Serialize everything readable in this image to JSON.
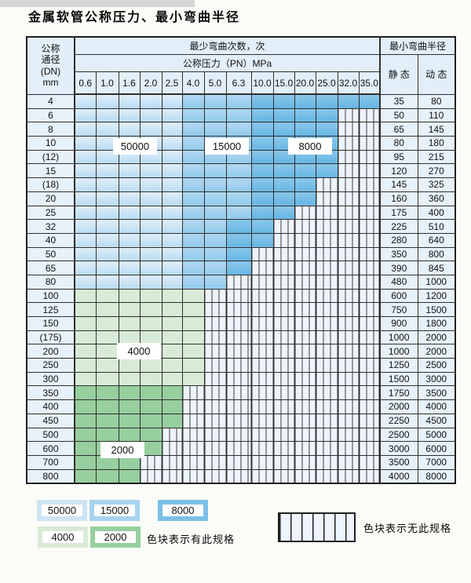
{
  "title": "金属软管公称压力、最小弯曲半径",
  "header": {
    "dn_lines": [
      "公称",
      "通径",
      "(DN)",
      "mm"
    ],
    "bend_cycles": "最少弯曲次数，次",
    "pressure_title": "公称压力（PN）MPa",
    "pressures": [
      "0.6",
      "1.0",
      "1.6",
      "2.0",
      "2.5",
      "4.0",
      "5.0",
      "6.3",
      "10.0",
      "15.0",
      "20.0",
      "25.0",
      "32.0",
      "35.0"
    ],
    "min_radius": "最小弯曲半径",
    "static_label": "静 态",
    "dynamic_label": "动 态"
  },
  "colors": {
    "b1": "#cde4f5",
    "b2": "#a6d3ef",
    "b3": "#7cc0e7",
    "g1": "#d8ebd6",
    "g2": "#97cf9e",
    "hatch_bg": "#edf4fb",
    "hatch_line": "#3c3c3c"
  },
  "rows": [
    {
      "dn": "4",
      "static": "35",
      "dynamic": "80",
      "spans": [
        [
          "b1",
          5
        ],
        [
          "b2",
          3
        ],
        [
          "b3",
          6
        ]
      ]
    },
    {
      "dn": "6",
      "static": "50",
      "dynamic": "110",
      "spans": [
        [
          "b1",
          5
        ],
        [
          "b2",
          3
        ],
        [
          "b3",
          4
        ]
      ]
    },
    {
      "dn": "8",
      "static": "65",
      "dynamic": "145",
      "spans": [
        [
          "b1",
          5
        ],
        [
          "b2",
          3
        ],
        [
          "b3",
          4
        ]
      ]
    },
    {
      "dn": "10",
      "static": "80",
      "dynamic": "180",
      "spans": [
        [
          "b1",
          5
        ],
        [
          "b2",
          3
        ],
        [
          "b3",
          4
        ]
      ]
    },
    {
      "dn": "(12)",
      "static": "95",
      "dynamic": "215",
      "spans": [
        [
          "b1",
          5
        ],
        [
          "b2",
          3
        ],
        [
          "b3",
          4
        ]
      ]
    },
    {
      "dn": "15",
      "static": "120",
      "dynamic": "270",
      "spans": [
        [
          "b1",
          5
        ],
        [
          "b2",
          3
        ],
        [
          "b3",
          4
        ]
      ]
    },
    {
      "dn": "(18)",
      "static": "145",
      "dynamic": "325",
      "spans": [
        [
          "b1",
          5
        ],
        [
          "b2",
          3
        ],
        [
          "b3",
          3
        ]
      ]
    },
    {
      "dn": "20",
      "static": "160",
      "dynamic": "360",
      "spans": [
        [
          "b1",
          5
        ],
        [
          "b2",
          3
        ],
        [
          "b3",
          3
        ]
      ]
    },
    {
      "dn": "25",
      "static": "175",
      "dynamic": "400",
      "spans": [
        [
          "b1",
          5
        ],
        [
          "b2",
          3
        ],
        [
          "b3",
          2
        ]
      ]
    },
    {
      "dn": "32",
      "static": "225",
      "dynamic": "510",
      "spans": [
        [
          "b1",
          5
        ],
        [
          "b2",
          2
        ],
        [
          "b3",
          2
        ]
      ]
    },
    {
      "dn": "40",
      "static": "280",
      "dynamic": "640",
      "spans": [
        [
          "b1",
          5
        ],
        [
          "b2",
          2
        ],
        [
          "b3",
          2
        ]
      ]
    },
    {
      "dn": "50",
      "static": "350",
      "dynamic": "800",
      "spans": [
        [
          "b1",
          5
        ],
        [
          "b2",
          2
        ],
        [
          "b3",
          1
        ]
      ]
    },
    {
      "dn": "65",
      "static": "390",
      "dynamic": "845",
      "spans": [
        [
          "b1",
          5
        ],
        [
          "b2",
          2
        ],
        [
          "b3",
          1
        ]
      ]
    },
    {
      "dn": "80",
      "static": "480",
      "dynamic": "1000",
      "spans": [
        [
          "b1",
          5
        ],
        [
          "b2",
          2
        ]
      ]
    },
    {
      "dn": "100",
      "static": "600",
      "dynamic": "1200",
      "spans": [
        [
          "g1",
          6
        ]
      ]
    },
    {
      "dn": "125",
      "static": "750",
      "dynamic": "1500",
      "spans": [
        [
          "g1",
          6
        ]
      ]
    },
    {
      "dn": "150",
      "static": "900",
      "dynamic": "1800",
      "spans": [
        [
          "g1",
          6
        ]
      ]
    },
    {
      "dn": "(175)",
      "static": "1000",
      "dynamic": "2000",
      "spans": [
        [
          "g1",
          6
        ]
      ]
    },
    {
      "dn": "200",
      "static": "1000",
      "dynamic": "2000",
      "spans": [
        [
          "g1",
          6
        ]
      ]
    },
    {
      "dn": "250",
      "static": "1250",
      "dynamic": "2500",
      "spans": [
        [
          "g1",
          6
        ]
      ]
    },
    {
      "dn": "300",
      "static": "1500",
      "dynamic": "3000",
      "spans": [
        [
          "g1",
          6
        ]
      ]
    },
    {
      "dn": "350",
      "static": "1750",
      "dynamic": "3500",
      "spans": [
        [
          "g2",
          5
        ]
      ]
    },
    {
      "dn": "400",
      "static": "2000",
      "dynamic": "4000",
      "spans": [
        [
          "g2",
          5
        ]
      ]
    },
    {
      "dn": "450",
      "static": "2250",
      "dynamic": "4500",
      "spans": [
        [
          "g2",
          5
        ]
      ]
    },
    {
      "dn": "500",
      "static": "2500",
      "dynamic": "5000",
      "spans": [
        [
          "g2",
          4
        ]
      ]
    },
    {
      "dn": "600",
      "static": "3000",
      "dynamic": "6000",
      "spans": [
        [
          "g2",
          4
        ]
      ]
    },
    {
      "dn": "700",
      "static": "3500",
      "dynamic": "7000",
      "spans": [
        [
          "g2",
          3
        ]
      ]
    },
    {
      "dn": "800",
      "static": "4000",
      "dynamic": "8000",
      "spans": [
        [
          "g2",
          3
        ]
      ]
    }
  ],
  "zone_labels": [
    "50000",
    "15000",
    "8000",
    "4000",
    "2000"
  ],
  "legend": {
    "present": [
      {
        "value": "50000",
        "zone": "b1"
      },
      {
        "value": "15000",
        "zone": "b2"
      },
      {
        "value": "8000",
        "zone": "b3"
      },
      {
        "value": "4000",
        "zone": "g1"
      },
      {
        "value": "2000",
        "zone": "g2"
      }
    ],
    "present_text": "色块表示有此规格",
    "absent_text": "色块表示无此规格"
  }
}
